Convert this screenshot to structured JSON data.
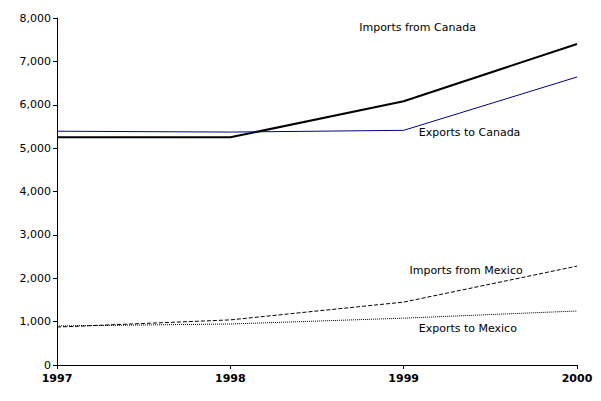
{
  "chart_data": {
    "type": "line",
    "x": [
      1997,
      1998,
      1999,
      2000
    ],
    "xlim": [
      1997,
      2000
    ],
    "xticks": [
      1997,
      1998,
      1999,
      2000
    ],
    "ylim": [
      0,
      8000
    ],
    "yticks": [
      0,
      {
        "value": 1000,
        "label": "1,000"
      },
      {
        "value": 2000,
        "label": "2,000"
      },
      {
        "value": 3000,
        "label": "3,000"
      },
      {
        "value": 4000,
        "label": "4,000"
      },
      {
        "value": 5000,
        "label": "5,000"
      },
      {
        "value": 6000,
        "label": "6,000"
      },
      {
        "value": 7000,
        "label": "7,000"
      },
      {
        "value": 8000,
        "label": "8,000"
      }
    ],
    "grid": false,
    "series": [
      {
        "name": "Imports from Canada",
        "color": "#000000",
        "line_style": "solid",
        "values": [
          5250,
          5250,
          6080,
          7400
        ]
      },
      {
        "name": "Exports to Canada",
        "color": "#000080",
        "line_style": "solid",
        "values": [
          5390,
          5370,
          5410,
          6640
        ]
      },
      {
        "name": "Imports from Mexico",
        "color": "#000000",
        "line_style": "dashed",
        "values": [
          875,
          1040,
          1450,
          2280
        ]
      },
      {
        "name": "Exports to Mexico",
        "color": "#000000",
        "line_style": "dotted",
        "values": [
          900,
          945,
          1080,
          1245
        ]
      }
    ],
    "annotations": [
      {
        "text": "Imports from Canada",
        "x": 1999.08,
        "y": 7790
      },
      {
        "text": "Exports to Canada",
        "x": 1999.38,
        "y": 5350
      },
      {
        "text": "Imports from Mexico",
        "x": 1999.36,
        "y": 2190
      },
      {
        "text": "Exports to Mexico",
        "x": 1999.37,
        "y": 850
      }
    ]
  }
}
